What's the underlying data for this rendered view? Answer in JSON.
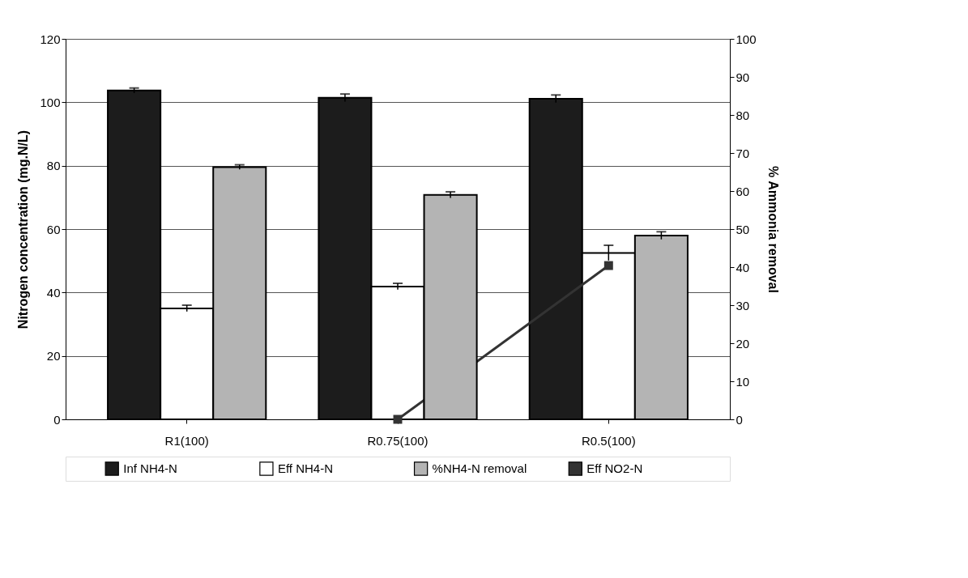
{
  "chart_data": {
    "type": "bar",
    "xlabel": null,
    "ylabel": "Nitrogen concentration (mg.N/L)",
    "y2label": "% Ammonia removal",
    "categories": [
      "R1(100)",
      "R0.75(100)",
      "R0.5(100)"
    ],
    "series": [
      {
        "name": "Inf NH4-N",
        "type": "bar",
        "color": "#1c1c1c",
        "values": [
          103.7,
          101.4,
          101.1
        ],
        "errors": [
          0.8,
          1.2,
          1.2
        ]
      },
      {
        "name": "Eff NH4-N",
        "type": "bar",
        "color": "#ffffff",
        "values": [
          35.0,
          41.9,
          52.5
        ],
        "errors": [
          1,
          1,
          2.4
        ]
      },
      {
        "name": "%NH4-N removal",
        "type": "bar",
        "axis": "y2",
        "color": "#b4b4b4",
        "values": [
          66.3,
          59.0,
          48.3
        ],
        "errors": [
          0.6,
          0.8,
          1
        ]
      },
      {
        "name": "Eff NO2-N",
        "type": "line",
        "color": "#333333",
        "values": [
          null,
          0,
          48.5
        ]
      }
    ],
    "ylim": [
      0,
      120
    ],
    "yticks": [
      0,
      20,
      40,
      60,
      80,
      100,
      120
    ],
    "y2lim": [
      0,
      100
    ],
    "y2ticks": [
      0,
      10,
      20,
      30,
      40,
      50,
      60,
      70,
      80,
      90,
      100
    ],
    "grid": "y",
    "legend": "bottom",
    "marker": "square",
    "line_style": "solid"
  }
}
